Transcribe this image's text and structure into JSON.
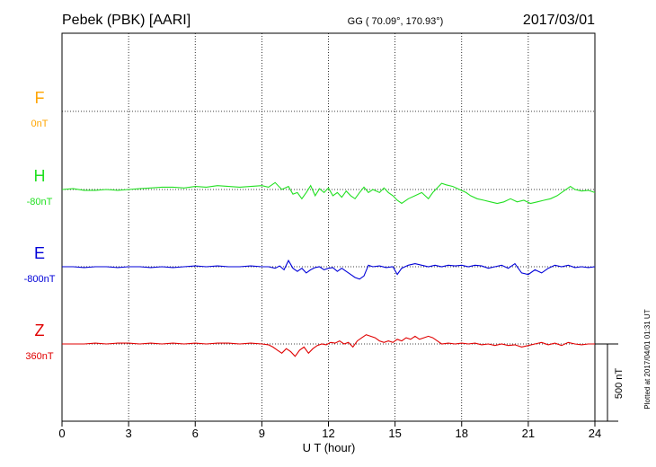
{
  "chart_data": {
    "type": "line",
    "header": {
      "station": "Pebek (PBK)  [AARI]",
      "coords": "GG ( 70.09°, 170.93°)",
      "date": "2017/03/01"
    },
    "xlabel": "U T (hour)",
    "xlim": [
      0,
      24
    ],
    "x_ticks": [
      "0",
      "3",
      "6",
      "9",
      "12",
      "15",
      "18",
      "21",
      "24"
    ],
    "scale_label": "500 nT",
    "footer_note": "Plotted at 2017/04/01 01:31  UT",
    "grid": true,
    "colors": {
      "F": "#ffa500",
      "H": "#22e022",
      "E": "#0000d8",
      "Z": "#e00000"
    },
    "series": [
      {
        "name": "F",
        "baseline_label": "0nT",
        "points": []
      },
      {
        "name": "H",
        "baseline_label": "-80nT",
        "points": [
          [
            0,
            0
          ],
          [
            0.5,
            5
          ],
          [
            1,
            -5
          ],
          [
            1.5,
            -5
          ],
          [
            2,
            0
          ],
          [
            2.5,
            -5
          ],
          [
            3,
            0
          ],
          [
            3.5,
            5
          ],
          [
            4,
            10
          ],
          [
            4.5,
            15
          ],
          [
            5,
            15
          ],
          [
            5.5,
            10
          ],
          [
            6,
            20
          ],
          [
            6.5,
            15
          ],
          [
            7,
            25
          ],
          [
            7.5,
            20
          ],
          [
            8,
            15
          ],
          [
            8.5,
            20
          ],
          [
            9,
            25
          ],
          [
            9.3,
            15
          ],
          [
            9.6,
            45
          ],
          [
            9.9,
            0
          ],
          [
            10.2,
            20
          ],
          [
            10.4,
            -30
          ],
          [
            10.6,
            -20
          ],
          [
            10.8,
            -60
          ],
          [
            11,
            -20
          ],
          [
            11.2,
            25
          ],
          [
            11.4,
            -40
          ],
          [
            11.6,
            5
          ],
          [
            11.8,
            -20
          ],
          [
            12,
            10
          ],
          [
            12.2,
            -40
          ],
          [
            12.4,
            -20
          ],
          [
            12.6,
            -50
          ],
          [
            12.8,
            -10
          ],
          [
            13,
            -40
          ],
          [
            13.2,
            -60
          ],
          [
            13.4,
            -20
          ],
          [
            13.6,
            15
          ],
          [
            13.8,
            -20
          ],
          [
            14,
            0
          ],
          [
            14.3,
            -20
          ],
          [
            14.5,
            10
          ],
          [
            14.7,
            -20
          ],
          [
            14.9,
            -40
          ],
          [
            15.1,
            -70
          ],
          [
            15.3,
            -90
          ],
          [
            15.6,
            -60
          ],
          [
            15.9,
            -40
          ],
          [
            16.2,
            -20
          ],
          [
            16.5,
            -60
          ],
          [
            16.7,
            -20
          ],
          [
            16.9,
            10
          ],
          [
            17.1,
            40
          ],
          [
            17.3,
            30
          ],
          [
            17.6,
            20
          ],
          [
            17.9,
            0
          ],
          [
            18.2,
            -20
          ],
          [
            18.4,
            -40
          ],
          [
            18.7,
            -60
          ],
          [
            19,
            -70
          ],
          [
            19.3,
            -80
          ],
          [
            19.6,
            -90
          ],
          [
            19.9,
            -80
          ],
          [
            20.2,
            -60
          ],
          [
            20.5,
            -80
          ],
          [
            20.8,
            -70
          ],
          [
            21.1,
            -90
          ],
          [
            21.4,
            -80
          ],
          [
            21.7,
            -70
          ],
          [
            22,
            -60
          ],
          [
            22.3,
            -40
          ],
          [
            22.6,
            -10
          ],
          [
            22.9,
            20
          ],
          [
            23.1,
            0
          ],
          [
            23.4,
            -10
          ],
          [
            23.7,
            -5
          ],
          [
            24,
            -20
          ]
        ]
      },
      {
        "name": "E",
        "baseline_label": "-800nT",
        "points": [
          [
            0,
            0
          ],
          [
            0.5,
            0
          ],
          [
            1,
            -5
          ],
          [
            1.5,
            0
          ],
          [
            2,
            0
          ],
          [
            2.5,
            -5
          ],
          [
            3,
            0
          ],
          [
            3.5,
            0
          ],
          [
            4,
            -5
          ],
          [
            4.5,
            0
          ],
          [
            5,
            -5
          ],
          [
            5.5,
            0
          ],
          [
            6,
            5
          ],
          [
            6.5,
            0
          ],
          [
            7,
            5
          ],
          [
            7.5,
            0
          ],
          [
            8,
            0
          ],
          [
            8.5,
            5
          ],
          [
            9,
            0
          ],
          [
            9.3,
            0
          ],
          [
            9.6,
            -10
          ],
          [
            9.8,
            5
          ],
          [
            10,
            -20
          ],
          [
            10.2,
            40
          ],
          [
            10.4,
            -10
          ],
          [
            10.6,
            -30
          ],
          [
            10.8,
            -10
          ],
          [
            11,
            -40
          ],
          [
            11.2,
            -20
          ],
          [
            11.4,
            -5
          ],
          [
            11.6,
            0
          ],
          [
            11.8,
            -20
          ],
          [
            12,
            -10
          ],
          [
            12.2,
            -5
          ],
          [
            12.4,
            -30
          ],
          [
            12.6,
            -10
          ],
          [
            12.8,
            -30
          ],
          [
            13,
            -50
          ],
          [
            13.2,
            -70
          ],
          [
            13.4,
            -80
          ],
          [
            13.6,
            -60
          ],
          [
            13.8,
            10
          ],
          [
            14,
            0
          ],
          [
            14.3,
            5
          ],
          [
            14.6,
            -5
          ],
          [
            14.9,
            0
          ],
          [
            15.1,
            -50
          ],
          [
            15.3,
            -10
          ],
          [
            15.6,
            10
          ],
          [
            15.9,
            20
          ],
          [
            16.2,
            10
          ],
          [
            16.5,
            0
          ],
          [
            16.8,
            10
          ],
          [
            17.1,
            0
          ],
          [
            17.4,
            10
          ],
          [
            17.7,
            5
          ],
          [
            18,
            10
          ],
          [
            18.3,
            0
          ],
          [
            18.6,
            10
          ],
          [
            18.9,
            5
          ],
          [
            19.2,
            -10
          ],
          [
            19.5,
            0
          ],
          [
            19.8,
            10
          ],
          [
            20.1,
            -10
          ],
          [
            20.4,
            20
          ],
          [
            20.7,
            -40
          ],
          [
            21,
            -50
          ],
          [
            21.3,
            -20
          ],
          [
            21.6,
            -40
          ],
          [
            21.9,
            -10
          ],
          [
            22.2,
            10
          ],
          [
            22.5,
            0
          ],
          [
            22.8,
            10
          ],
          [
            23.1,
            -5
          ],
          [
            23.4,
            0
          ],
          [
            23.7,
            -5
          ],
          [
            24,
            0
          ]
        ]
      },
      {
        "name": "Z",
        "baseline_label": "360nT",
        "points": [
          [
            0,
            0
          ],
          [
            0.5,
            0
          ],
          [
            1,
            0
          ],
          [
            1.5,
            5
          ],
          [
            2,
            0
          ],
          [
            2.5,
            5
          ],
          [
            3,
            5
          ],
          [
            3.5,
            0
          ],
          [
            4,
            5
          ],
          [
            4.5,
            0
          ],
          [
            5,
            5
          ],
          [
            5.5,
            0
          ],
          [
            6,
            5
          ],
          [
            6.5,
            0
          ],
          [
            7,
            5
          ],
          [
            7.5,
            5
          ],
          [
            8,
            0
          ],
          [
            8.5,
            5
          ],
          [
            9,
            0
          ],
          [
            9.3,
            -5
          ],
          [
            9.5,
            -20
          ],
          [
            9.7,
            -40
          ],
          [
            9.9,
            -60
          ],
          [
            10.1,
            -30
          ],
          [
            10.3,
            -50
          ],
          [
            10.5,
            -80
          ],
          [
            10.7,
            -40
          ],
          [
            10.9,
            -20
          ],
          [
            11.1,
            -60
          ],
          [
            11.3,
            -30
          ],
          [
            11.5,
            -10
          ],
          [
            11.7,
            0
          ],
          [
            11.9,
            -5
          ],
          [
            12.1,
            10
          ],
          [
            12.3,
            5
          ],
          [
            12.5,
            20
          ],
          [
            12.7,
            0
          ],
          [
            12.9,
            10
          ],
          [
            13.1,
            -20
          ],
          [
            13.3,
            20
          ],
          [
            13.5,
            40
          ],
          [
            13.7,
            60
          ],
          [
            13.9,
            50
          ],
          [
            14.1,
            40
          ],
          [
            14.3,
            20
          ],
          [
            14.5,
            10
          ],
          [
            14.7,
            20
          ],
          [
            14.9,
            10
          ],
          [
            15.1,
            30
          ],
          [
            15.3,
            20
          ],
          [
            15.5,
            40
          ],
          [
            15.7,
            30
          ],
          [
            15.9,
            50
          ],
          [
            16.1,
            30
          ],
          [
            16.3,
            40
          ],
          [
            16.5,
            50
          ],
          [
            16.7,
            40
          ],
          [
            16.9,
            20
          ],
          [
            17.1,
            0
          ],
          [
            17.4,
            5
          ],
          [
            17.7,
            0
          ],
          [
            18,
            5
          ],
          [
            18.3,
            0
          ],
          [
            18.6,
            5
          ],
          [
            18.9,
            -5
          ],
          [
            19.2,
            0
          ],
          [
            19.5,
            -10
          ],
          [
            19.8,
            0
          ],
          [
            20.1,
            -10
          ],
          [
            20.4,
            -5
          ],
          [
            20.7,
            -20
          ],
          [
            21,
            -10
          ],
          [
            21.3,
            0
          ],
          [
            21.6,
            10
          ],
          [
            21.9,
            -5
          ],
          [
            22.2,
            5
          ],
          [
            22.5,
            -10
          ],
          [
            22.8,
            10
          ],
          [
            23.1,
            0
          ],
          [
            23.4,
            -5
          ],
          [
            23.7,
            0
          ],
          [
            24,
            0
          ]
        ]
      }
    ]
  }
}
